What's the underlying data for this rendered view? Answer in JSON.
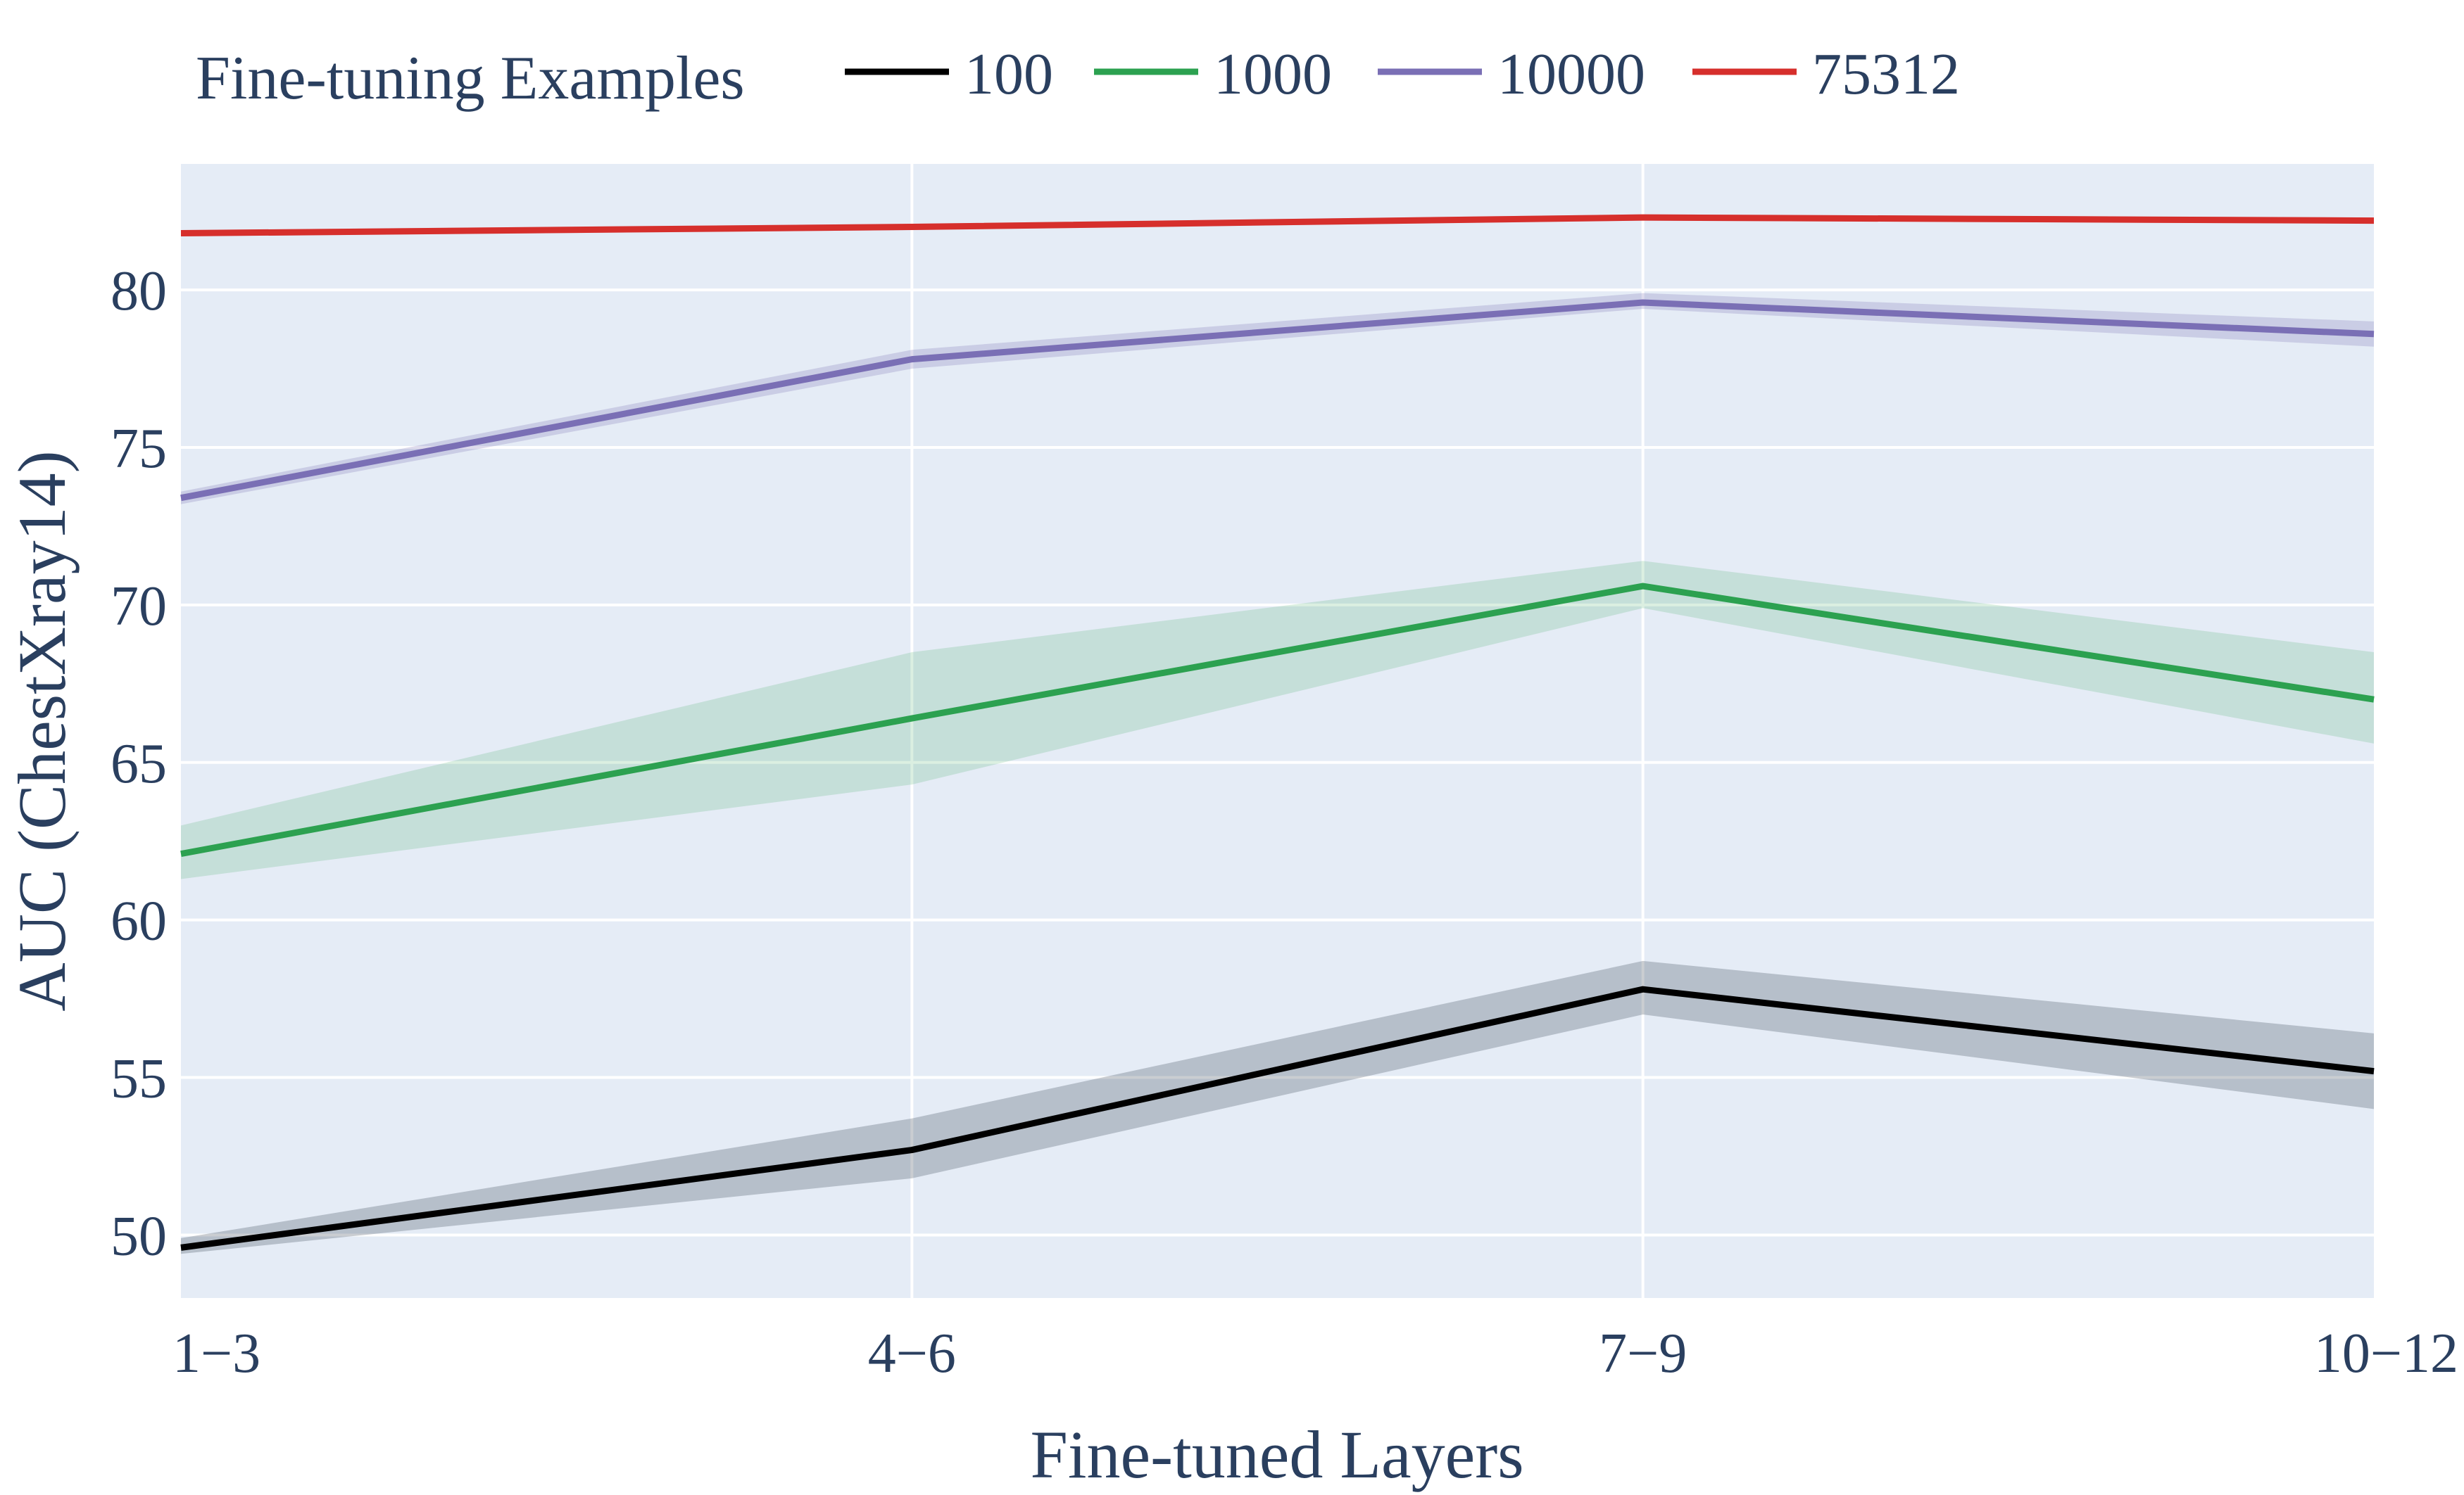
{
  "chart_data": {
    "type": "line",
    "xlabel": "Fine-tuned Layers",
    "ylabel": "AUC (ChestXray14)",
    "categories": [
      "1−3",
      "4−6",
      "7−9",
      "10−12"
    ],
    "ylim": [
      48,
      84
    ],
    "yticks": [
      50,
      55,
      60,
      65,
      70,
      75,
      80
    ],
    "grid": true,
    "legend": {
      "title": "Fine-tuning Examples",
      "placement": "top"
    },
    "plot_background": "#e5ecf6",
    "series": [
      {
        "name": "100",
        "color": "#000000",
        "band_color": "rgba(45,55,70,0.25)",
        "values": [
          49.6,
          52.7,
          57.8,
          55.2
        ],
        "lower": [
          49.4,
          51.8,
          57.0,
          54.0
        ],
        "upper": [
          49.9,
          53.7,
          58.7,
          56.4
        ]
      },
      {
        "name": "1000",
        "color": "#2ca150",
        "band_color": "rgba(44,161,80,0.17)",
        "values": [
          62.1,
          66.4,
          70.6,
          67.0
        ],
        "lower": [
          61.3,
          64.3,
          69.9,
          65.6
        ],
        "upper": [
          63.0,
          68.5,
          71.4,
          68.5
        ]
      },
      {
        "name": "10000",
        "color": "#7a6fb5",
        "band_color": "rgba(122,111,181,0.25)",
        "values": [
          73.4,
          77.8,
          79.6,
          78.6
        ],
        "lower": [
          73.2,
          77.5,
          79.4,
          78.2
        ],
        "upper": [
          73.6,
          78.1,
          79.9,
          79.0
        ]
      },
      {
        "name": "75312",
        "color": "#d62f2c",
        "band_color": "rgba(214,47,44,0.15)",
        "values": [
          81.8,
          82.0,
          82.3,
          82.2
        ],
        "lower": [
          81.7,
          81.9,
          82.2,
          82.1
        ],
        "upper": [
          81.9,
          82.1,
          82.4,
          82.3
        ]
      }
    ]
  }
}
